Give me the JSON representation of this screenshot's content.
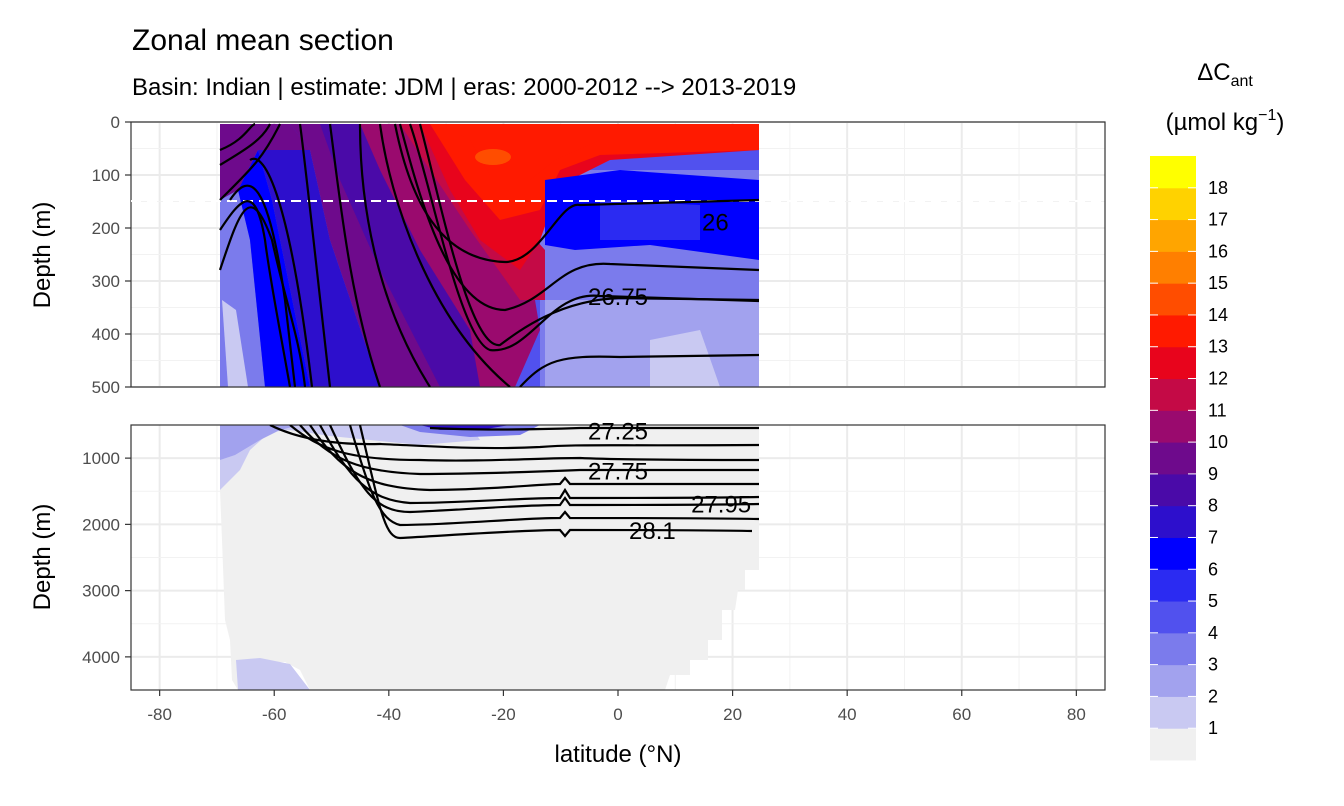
{
  "figure": {
    "title": "Zonal mean section",
    "subtitle": "Basin: Indian | estimate: JDM  | eras: 2000-2012 --> 2013-2019"
  },
  "chart_data": {
    "type": "heatmap",
    "description_type": "filled contour section with isopycnal line contours, two faceted depth panels",
    "xlabel": "latitude (°N)",
    "ylabel": "Depth (m)",
    "xlim": [
      -85,
      85
    ],
    "x_ticks": [
      -80,
      -60,
      -40,
      -20,
      0,
      20,
      40,
      60,
      80
    ],
    "data_lat_range": [
      -69.5,
      24.5
    ],
    "grid": true,
    "panels": [
      {
        "name": "upper",
        "ylim": [
          0,
          500
        ],
        "y_ticks": [
          0,
          100,
          200,
          300,
          400,
          500
        ],
        "reversed": true
      },
      {
        "name": "lower",
        "ylim": [
          500,
          4500
        ],
        "y_ticks": [
          1000,
          2000,
          3000,
          4000
        ],
        "reversed": true
      }
    ],
    "reference_line": {
      "depth": 150,
      "style": "dashed",
      "color": "#ffffff"
    },
    "legend": {
      "title_main": "ΔC",
      "title_sub": "ant",
      "unit_main": "(µmol kg",
      "unit_sup": "−1",
      "unit_close": ")",
      "placement": "right",
      "levels": [
        1,
        2,
        3,
        4,
        5,
        6,
        7,
        8,
        9,
        10,
        11,
        12,
        13,
        14,
        15,
        16,
        17,
        18
      ],
      "colors": [
        "#f0f0f0",
        "#c9c9f2",
        "#a2a2ee",
        "#7b7bec",
        "#5151ee",
        "#2b2bf2",
        "#0000ff",
        "#2d0fcc",
        "#4a0aa8",
        "#6e0a8c",
        "#9a0a6e",
        "#c40a46",
        "#e8041c",
        "#ff1a00",
        "#ff4d00",
        "#ff7f00",
        "#ffa500",
        "#ffd200",
        "#ffff00"
      ]
    },
    "contour_labels": [
      {
        "text": "26",
        "lat": 17,
        "depth": 190
      },
      {
        "text": "26.75",
        "lat": 0,
        "depth": 330
      },
      {
        "text": "27.25",
        "lat": 0,
        "depth": 600
      },
      {
        "text": "27.75",
        "lat": 0,
        "depth": 1200
      },
      {
        "text": "27.95",
        "lat": 18,
        "depth": 1700
      },
      {
        "text": "28.1",
        "lat": 6,
        "depth": 2100
      }
    ]
  }
}
